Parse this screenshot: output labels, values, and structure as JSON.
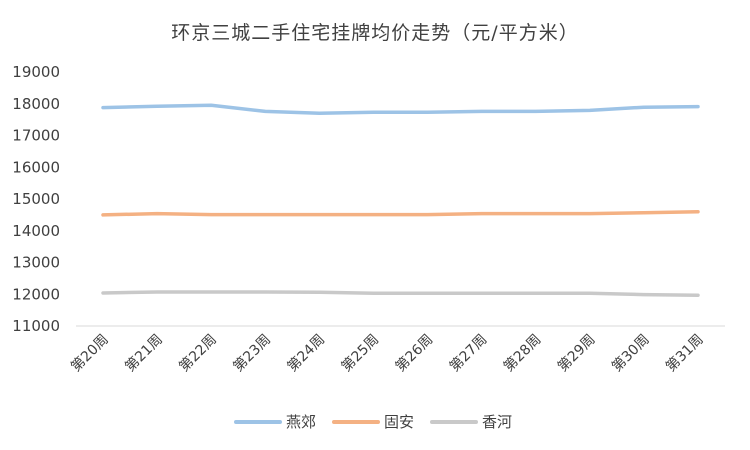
{
  "chart_data": {
    "type": "line",
    "title": "环京三城二手住宅挂牌均价走势（元/平方米）",
    "categories": [
      "第20周",
      "第21周",
      "第22周",
      "第23周",
      "第24周",
      "第25周",
      "第26周",
      "第27周",
      "第28周",
      "第29周",
      "第30周",
      "第31周"
    ],
    "ylim": [
      11000,
      19000
    ],
    "yticks": [
      11000,
      12000,
      13000,
      14000,
      15000,
      16000,
      17000,
      18000,
      19000
    ],
    "grid": false,
    "legend": "bottom",
    "series": [
      {
        "name": "燕郊",
        "color": "#9DC3E6",
        "values": [
          17880,
          17920,
          17950,
          17760,
          17700,
          17730,
          17730,
          17760,
          17760,
          17790,
          17890,
          17910
        ]
      },
      {
        "name": "固安",
        "color": "#F4B183",
        "values": [
          14500,
          14540,
          14510,
          14510,
          14510,
          14510,
          14510,
          14540,
          14540,
          14540,
          14570,
          14600
        ]
      },
      {
        "name": "香河",
        "color": "#C9C9C9",
        "values": [
          12040,
          12070,
          12070,
          12070,
          12060,
          12030,
          12030,
          12030,
          12030,
          12030,
          11990,
          11970
        ]
      }
    ]
  }
}
